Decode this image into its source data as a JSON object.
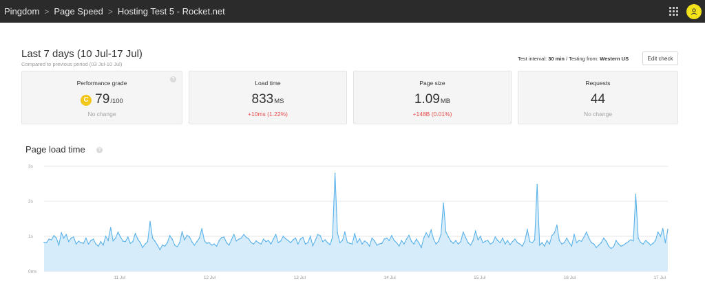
{
  "breadcrumb": {
    "items": [
      "Pingdom",
      "Page Speed",
      "Hosting Test 5 - Rocket.net"
    ],
    "separator": ">"
  },
  "header": {
    "grid_icon": "apps-grid-icon",
    "avatar_icon": "user-icon",
    "avatar_color": "#f3e21a"
  },
  "period": {
    "title": "Last 7 days (10 Jul-17 Jul)",
    "subtitle": "Compared to previous period (03 Jul-10 Jul)"
  },
  "test_info": {
    "interval_label": "Test interval:",
    "interval_value": "30 min",
    "testing_from_label": "/ Testing from:",
    "testing_from_value": "Western US"
  },
  "edit_button": "Edit check",
  "cards": {
    "grade": {
      "label": "Performance grade",
      "badge": "C",
      "value": "79",
      "unit": "/100",
      "delta": "No change",
      "badge_color": "#f3c61a"
    },
    "load": {
      "label": "Load time",
      "value": "833",
      "unit": "MS",
      "delta": "+10ms (1.22%)"
    },
    "size": {
      "label": "Page size",
      "value": "1.09",
      "unit": "MB",
      "delta": "+148B (0.01%)"
    },
    "requests": {
      "label": "Requests",
      "value": "44",
      "delta": "No change"
    }
  },
  "colors": {
    "increase": "#e84a4a",
    "neutral": "#a3a3a3",
    "line": "#5ab2ea",
    "fill": "#d6ecfa"
  },
  "chart_title": "Page load time",
  "chart_data": {
    "type": "area",
    "title": "Page load time",
    "xlabel": "",
    "ylabel": "",
    "ylim": [
      0,
      3
    ],
    "y_tick_labels": [
      "0ms",
      "1s",
      "2s",
      "3s"
    ],
    "y_tick_values": [
      0,
      1,
      2,
      3
    ],
    "x_tick_labels": [
      "11 Jul",
      "12 Jul",
      "13 Jul",
      "14 Jul",
      "15 Jul",
      "16 Jul",
      "17 Jul"
    ],
    "x_tick_values": [
      0.84,
      1.84,
      2.84,
      3.84,
      4.84,
      5.84,
      6.84
    ],
    "grid": true,
    "series": [
      {
        "x_start": 0,
        "x_end": 6.93,
        "values": [
          0.83,
          0.82,
          0.92,
          0.9,
          1.02,
          0.95,
          0.75,
          1.1,
          0.95,
          1.05,
          0.85,
          0.95,
          0.98,
          0.78,
          0.86,
          0.82,
          0.8,
          0.95,
          0.78,
          0.88,
          0.92,
          0.78,
          0.72,
          0.85,
          0.75,
          1.0,
          0.88,
          1.25,
          0.87,
          0.95,
          1.12,
          0.98,
          0.86,
          0.85,
          0.98,
          0.8,
          0.85,
          1.08,
          0.92,
          0.82,
          0.68,
          0.78,
          0.85,
          1.42,
          0.95,
          0.86,
          0.75,
          0.62,
          0.75,
          0.72,
          0.82,
          1.02,
          0.92,
          0.75,
          0.7,
          0.82,
          1.13,
          0.9,
          1.03,
          0.98,
          0.84,
          0.75,
          0.85,
          0.95,
          1.22,
          0.88,
          0.8,
          0.82,
          0.75,
          0.78,
          0.72,
          0.88,
          0.96,
          0.98,
          0.82,
          0.75,
          0.9,
          1.05,
          0.87,
          0.92,
          0.95,
          1.05,
          0.97,
          0.93,
          0.82,
          0.78,
          0.87,
          0.82,
          0.78,
          0.92,
          0.85,
          0.88,
          0.78,
          0.92,
          1.05,
          0.82,
          0.87,
          1.0,
          0.93,
          0.88,
          0.82,
          0.9,
          0.95,
          0.78,
          0.92,
          0.97,
          0.78,
          0.82,
          1.0,
          0.73,
          0.88,
          1.05,
          1.02,
          0.85,
          0.9,
          0.82,
          0.76,
          0.98,
          2.8,
          1.1,
          0.82,
          0.88,
          1.12,
          0.83,
          0.8,
          0.78,
          1.08,
          0.82,
          0.93,
          0.78,
          0.87,
          0.82,
          0.72,
          0.95,
          0.87,
          0.75,
          0.78,
          0.8,
          0.92,
          0.95,
          0.88,
          1.02,
          0.88,
          0.82,
          0.72,
          0.88,
          0.78,
          0.92,
          1.03,
          0.86,
          0.78,
          0.92,
          0.82,
          0.68,
          0.95,
          1.1,
          0.98,
          1.18,
          0.92,
          0.78,
          0.86,
          1.05,
          1.95,
          1.12,
          0.98,
          0.86,
          0.8,
          0.88,
          0.78,
          0.85,
          1.12,
          0.96,
          0.82,
          0.75,
          0.88,
          1.15,
          0.9,
          1.0,
          0.82,
          0.86,
          0.88,
          0.78,
          0.82,
          0.98,
          0.88,
          0.82,
          0.95,
          0.78,
          0.88,
          0.76,
          0.85,
          0.92,
          0.82,
          0.78,
          0.72,
          0.86,
          1.2,
          0.85,
          0.82,
          0.9,
          2.48,
          0.75,
          0.82,
          0.72,
          0.88,
          0.78,
          1.02,
          1.1,
          1.32,
          0.88,
          0.78,
          0.82,
          0.95,
          0.82,
          0.72,
          1.05,
          0.82,
          0.88,
          0.86,
          0.98,
          1.12,
          0.95,
          0.82,
          0.78,
          0.68,
          0.75,
          0.82,
          0.95,
          0.86,
          0.72,
          0.65,
          0.7,
          0.88,
          0.78,
          0.72,
          0.75,
          0.8,
          0.85,
          0.9,
          0.87,
          2.2,
          0.95,
          0.82,
          0.78,
          0.88,
          0.82,
          0.75,
          0.8,
          0.88,
          1.12,
          1.0,
          1.22,
          0.82,
          1.2
        ]
      }
    ]
  }
}
